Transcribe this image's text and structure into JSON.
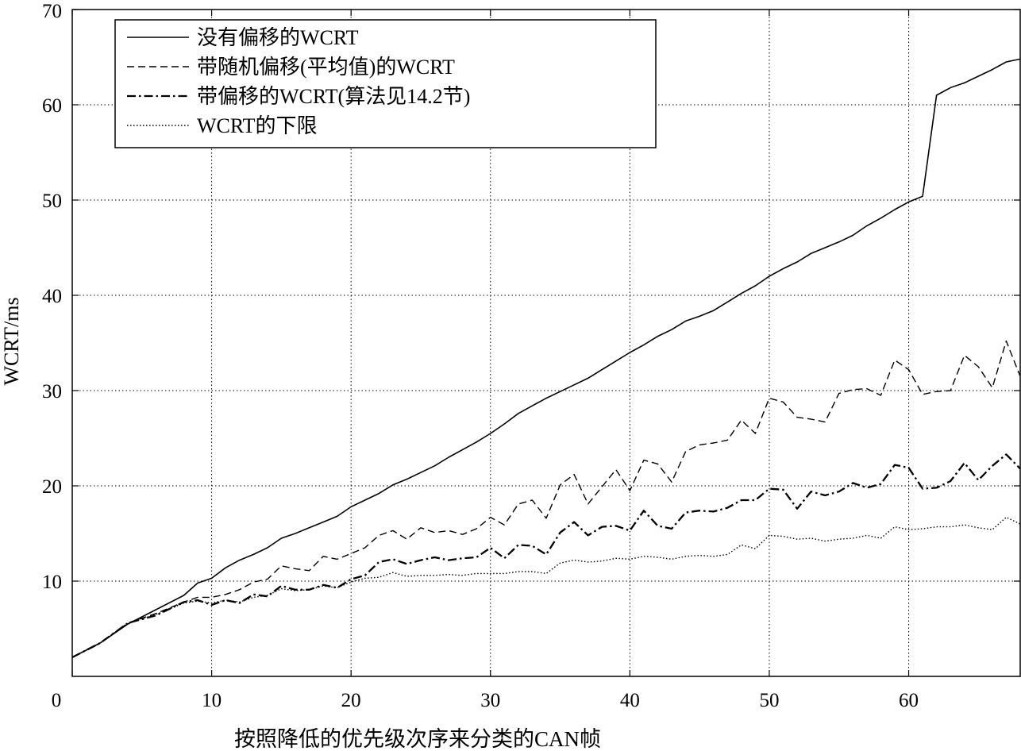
{
  "chart_data": {
    "type": "line",
    "xlabel": "按照降低的优先级次序来分类的CAN帧",
    "ylabel": "WCRT/ms",
    "xlim": [
      0,
      68
    ],
    "ylim": [
      0,
      70
    ],
    "xticks": [
      0,
      10,
      20,
      30,
      40,
      50,
      60
    ],
    "yticks": [
      10,
      20,
      30,
      40,
      50,
      60,
      70
    ],
    "grid": true,
    "legend_position": "top-left",
    "series": [
      {
        "name": "没有偏移的WCRT",
        "style": "solid",
        "points": [
          [
            0,
            2
          ],
          [
            2,
            3.5
          ],
          [
            4,
            5.5
          ],
          [
            6,
            7
          ],
          [
            8,
            8.5
          ],
          [
            9,
            9.8
          ],
          [
            10,
            10.3
          ],
          [
            11,
            11.4
          ],
          [
            12,
            12.2
          ],
          [
            13,
            12.8
          ],
          [
            14,
            13.5
          ],
          [
            15,
            14.5
          ],
          [
            16,
            15
          ],
          [
            17,
            15.6
          ],
          [
            18,
            16.2
          ],
          [
            19,
            16.8
          ],
          [
            20,
            17.8
          ],
          [
            21,
            18.5
          ],
          [
            22,
            19.2
          ],
          [
            23,
            20.1
          ],
          [
            24,
            20.7
          ],
          [
            25,
            21.4
          ],
          [
            26,
            22.1
          ],
          [
            27,
            23
          ],
          [
            28,
            23.8
          ],
          [
            29,
            24.6
          ],
          [
            30,
            25.5
          ],
          [
            31,
            26.5
          ],
          [
            32,
            27.6
          ],
          [
            33,
            28.4
          ],
          [
            34,
            29.2
          ],
          [
            35,
            29.9
          ],
          [
            36,
            30.6
          ],
          [
            37,
            31.3
          ],
          [
            38,
            32.2
          ],
          [
            39,
            33.1
          ],
          [
            40,
            34
          ],
          [
            41,
            34.8
          ],
          [
            42,
            35.7
          ],
          [
            43,
            36.4
          ],
          [
            44,
            37.3
          ],
          [
            45,
            37.8
          ],
          [
            46,
            38.4
          ],
          [
            47,
            39.3
          ],
          [
            48,
            40.2
          ],
          [
            49,
            41
          ],
          [
            50,
            42
          ],
          [
            51,
            42.8
          ],
          [
            52,
            43.5
          ],
          [
            53,
            44.4
          ],
          [
            54,
            45
          ],
          [
            55,
            45.6
          ],
          [
            56,
            46.3
          ],
          [
            57,
            47.3
          ],
          [
            58,
            48.1
          ],
          [
            59,
            49
          ],
          [
            60,
            49.8
          ],
          [
            61,
            50.4
          ],
          [
            62,
            61
          ],
          [
            63,
            61.8
          ],
          [
            64,
            62.3
          ],
          [
            65,
            63
          ],
          [
            66,
            63.7
          ],
          [
            67,
            64.5
          ],
          [
            68,
            64.8
          ]
        ]
      },
      {
        "name": "带随机偏移(平均值)的WCRT",
        "style": "dashed",
        "points": [
          [
            0,
            2
          ],
          [
            2,
            3.5
          ],
          [
            4,
            5.6
          ],
          [
            6,
            6.6
          ],
          [
            8,
            7.8
          ],
          [
            9,
            8.3
          ],
          [
            10,
            8.3
          ],
          [
            11,
            8.6
          ],
          [
            12,
            9.1
          ],
          [
            13,
            9.9
          ],
          [
            14,
            10.2
          ],
          [
            15,
            11.6
          ],
          [
            16,
            11.3
          ],
          [
            17,
            11.1
          ],
          [
            18,
            12.6
          ],
          [
            19,
            12.3
          ],
          [
            20,
            12.9
          ],
          [
            21,
            13.5
          ],
          [
            22,
            14.8
          ],
          [
            23,
            15.3
          ],
          [
            24,
            14.4
          ],
          [
            25,
            15.6
          ],
          [
            26,
            15.1
          ],
          [
            27,
            15.3
          ],
          [
            28,
            14.9
          ],
          [
            29,
            15.5
          ],
          [
            30,
            16.7
          ],
          [
            31,
            15.9
          ],
          [
            32,
            18.1
          ],
          [
            33,
            18.5
          ],
          [
            34,
            16.6
          ],
          [
            35,
            20.1
          ],
          [
            36,
            21.2
          ],
          [
            37,
            18.1
          ],
          [
            38,
            19.9
          ],
          [
            39,
            21.7
          ],
          [
            40,
            19.5
          ],
          [
            41,
            22.7
          ],
          [
            42,
            22.3
          ],
          [
            43,
            20.4
          ],
          [
            44,
            23.6
          ],
          [
            45,
            24.3
          ],
          [
            46,
            24.5
          ],
          [
            47,
            24.8
          ],
          [
            48,
            26.9
          ],
          [
            49,
            25.5
          ],
          [
            50,
            29.2
          ],
          [
            51,
            28.8
          ],
          [
            52,
            27.2
          ],
          [
            53,
            27
          ],
          [
            54,
            26.7
          ],
          [
            55,
            29.7
          ],
          [
            56,
            30.1
          ],
          [
            57,
            30.2
          ],
          [
            58,
            29.5
          ],
          [
            59,
            33.2
          ],
          [
            60,
            32.2
          ],
          [
            61,
            29.6
          ],
          [
            62,
            29.9
          ],
          [
            63,
            30
          ],
          [
            64,
            33.7
          ],
          [
            65,
            32.5
          ],
          [
            66,
            30.3
          ],
          [
            67,
            35.2
          ],
          [
            68,
            31.5
          ]
        ]
      },
      {
        "name": "带偏移的WCRT(算法见14.2节)",
        "style": "dashdot",
        "points": [
          [
            0,
            2
          ],
          [
            2,
            3.5
          ],
          [
            4,
            5.6
          ],
          [
            6,
            6.4
          ],
          [
            8,
            7.8
          ],
          [
            9,
            8
          ],
          [
            10,
            7.5
          ],
          [
            11,
            8
          ],
          [
            12,
            7.7
          ],
          [
            13,
            8.6
          ],
          [
            14,
            8.4
          ],
          [
            15,
            9.5
          ],
          [
            16,
            9.1
          ],
          [
            17,
            9.1
          ],
          [
            18,
            9.6
          ],
          [
            19,
            9.3
          ],
          [
            20,
            10.2
          ],
          [
            21,
            10.6
          ],
          [
            22,
            12
          ],
          [
            23,
            12.3
          ],
          [
            24,
            11.8
          ],
          [
            25,
            12.2
          ],
          [
            26,
            12.5
          ],
          [
            27,
            12.2
          ],
          [
            28,
            12.4
          ],
          [
            29,
            12.5
          ],
          [
            30,
            13.5
          ],
          [
            31,
            12.4
          ],
          [
            32,
            13.8
          ],
          [
            33,
            13.7
          ],
          [
            34,
            12.8
          ],
          [
            35,
            15.1
          ],
          [
            36,
            16.2
          ],
          [
            37,
            14.8
          ],
          [
            38,
            15.7
          ],
          [
            39,
            15.8
          ],
          [
            40,
            15.3
          ],
          [
            41,
            17.4
          ],
          [
            42,
            15.8
          ],
          [
            43,
            15.5
          ],
          [
            44,
            17.2
          ],
          [
            45,
            17.4
          ],
          [
            46,
            17.3
          ],
          [
            47,
            17.7
          ],
          [
            48,
            18.5
          ],
          [
            49,
            18.5
          ],
          [
            50,
            19.7
          ],
          [
            51,
            19.6
          ],
          [
            52,
            17.6
          ],
          [
            53,
            19.4
          ],
          [
            54,
            19
          ],
          [
            55,
            19.4
          ],
          [
            56,
            20.3
          ],
          [
            57,
            19.8
          ],
          [
            58,
            20.2
          ],
          [
            59,
            22.2
          ],
          [
            60,
            21.9
          ],
          [
            61,
            19.7
          ],
          [
            62,
            19.8
          ],
          [
            63,
            20.5
          ],
          [
            64,
            22.4
          ],
          [
            65,
            20.6
          ],
          [
            66,
            22.1
          ],
          [
            67,
            23.3
          ],
          [
            68,
            21.8
          ]
        ]
      },
      {
        "name": "WCRT的下限",
        "style": "dotted",
        "points": [
          [
            0,
            2
          ],
          [
            2,
            3.5
          ],
          [
            4,
            5.6
          ],
          [
            6,
            6.5
          ],
          [
            8,
            7.7
          ],
          [
            9,
            7.9
          ],
          [
            10,
            7.7
          ],
          [
            11,
            8
          ],
          [
            12,
            7.8
          ],
          [
            13,
            8.3
          ],
          [
            14,
            8.5
          ],
          [
            15,
            9.2
          ],
          [
            16,
            9
          ],
          [
            17,
            9.1
          ],
          [
            18,
            9.5
          ],
          [
            19,
            9.3
          ],
          [
            20,
            9.9
          ],
          [
            21,
            10.3
          ],
          [
            22,
            10.4
          ],
          [
            23,
            10.9
          ],
          [
            24,
            10.5
          ],
          [
            25,
            10.6
          ],
          [
            26,
            10.6
          ],
          [
            27,
            10.7
          ],
          [
            28,
            10.6
          ],
          [
            29,
            10.8
          ],
          [
            30,
            10.8
          ],
          [
            31,
            10.8
          ],
          [
            32,
            11
          ],
          [
            33,
            11
          ],
          [
            34,
            10.8
          ],
          [
            35,
            11.9
          ],
          [
            36,
            12.2
          ],
          [
            37,
            12
          ],
          [
            38,
            12.1
          ],
          [
            39,
            12.4
          ],
          [
            40,
            12.3
          ],
          [
            41,
            12.6
          ],
          [
            42,
            12.5
          ],
          [
            43,
            12.3
          ],
          [
            44,
            12.6
          ],
          [
            45,
            12.7
          ],
          [
            46,
            12.6
          ],
          [
            47,
            12.8
          ],
          [
            48,
            13.8
          ],
          [
            49,
            13.4
          ],
          [
            50,
            14.8
          ],
          [
            51,
            14.7
          ],
          [
            52,
            14.4
          ],
          [
            53,
            14.5
          ],
          [
            54,
            14.2
          ],
          [
            55,
            14.4
          ],
          [
            56,
            14.5
          ],
          [
            57,
            14.8
          ],
          [
            58,
            14.5
          ],
          [
            59,
            15.7
          ],
          [
            60,
            15.4
          ],
          [
            61,
            15.5
          ],
          [
            62,
            15.7
          ],
          [
            63,
            15.7
          ],
          [
            64,
            15.9
          ],
          [
            65,
            15.6
          ],
          [
            66,
            15.4
          ],
          [
            67,
            16.7
          ],
          [
            68,
            16
          ]
        ]
      }
    ]
  }
}
